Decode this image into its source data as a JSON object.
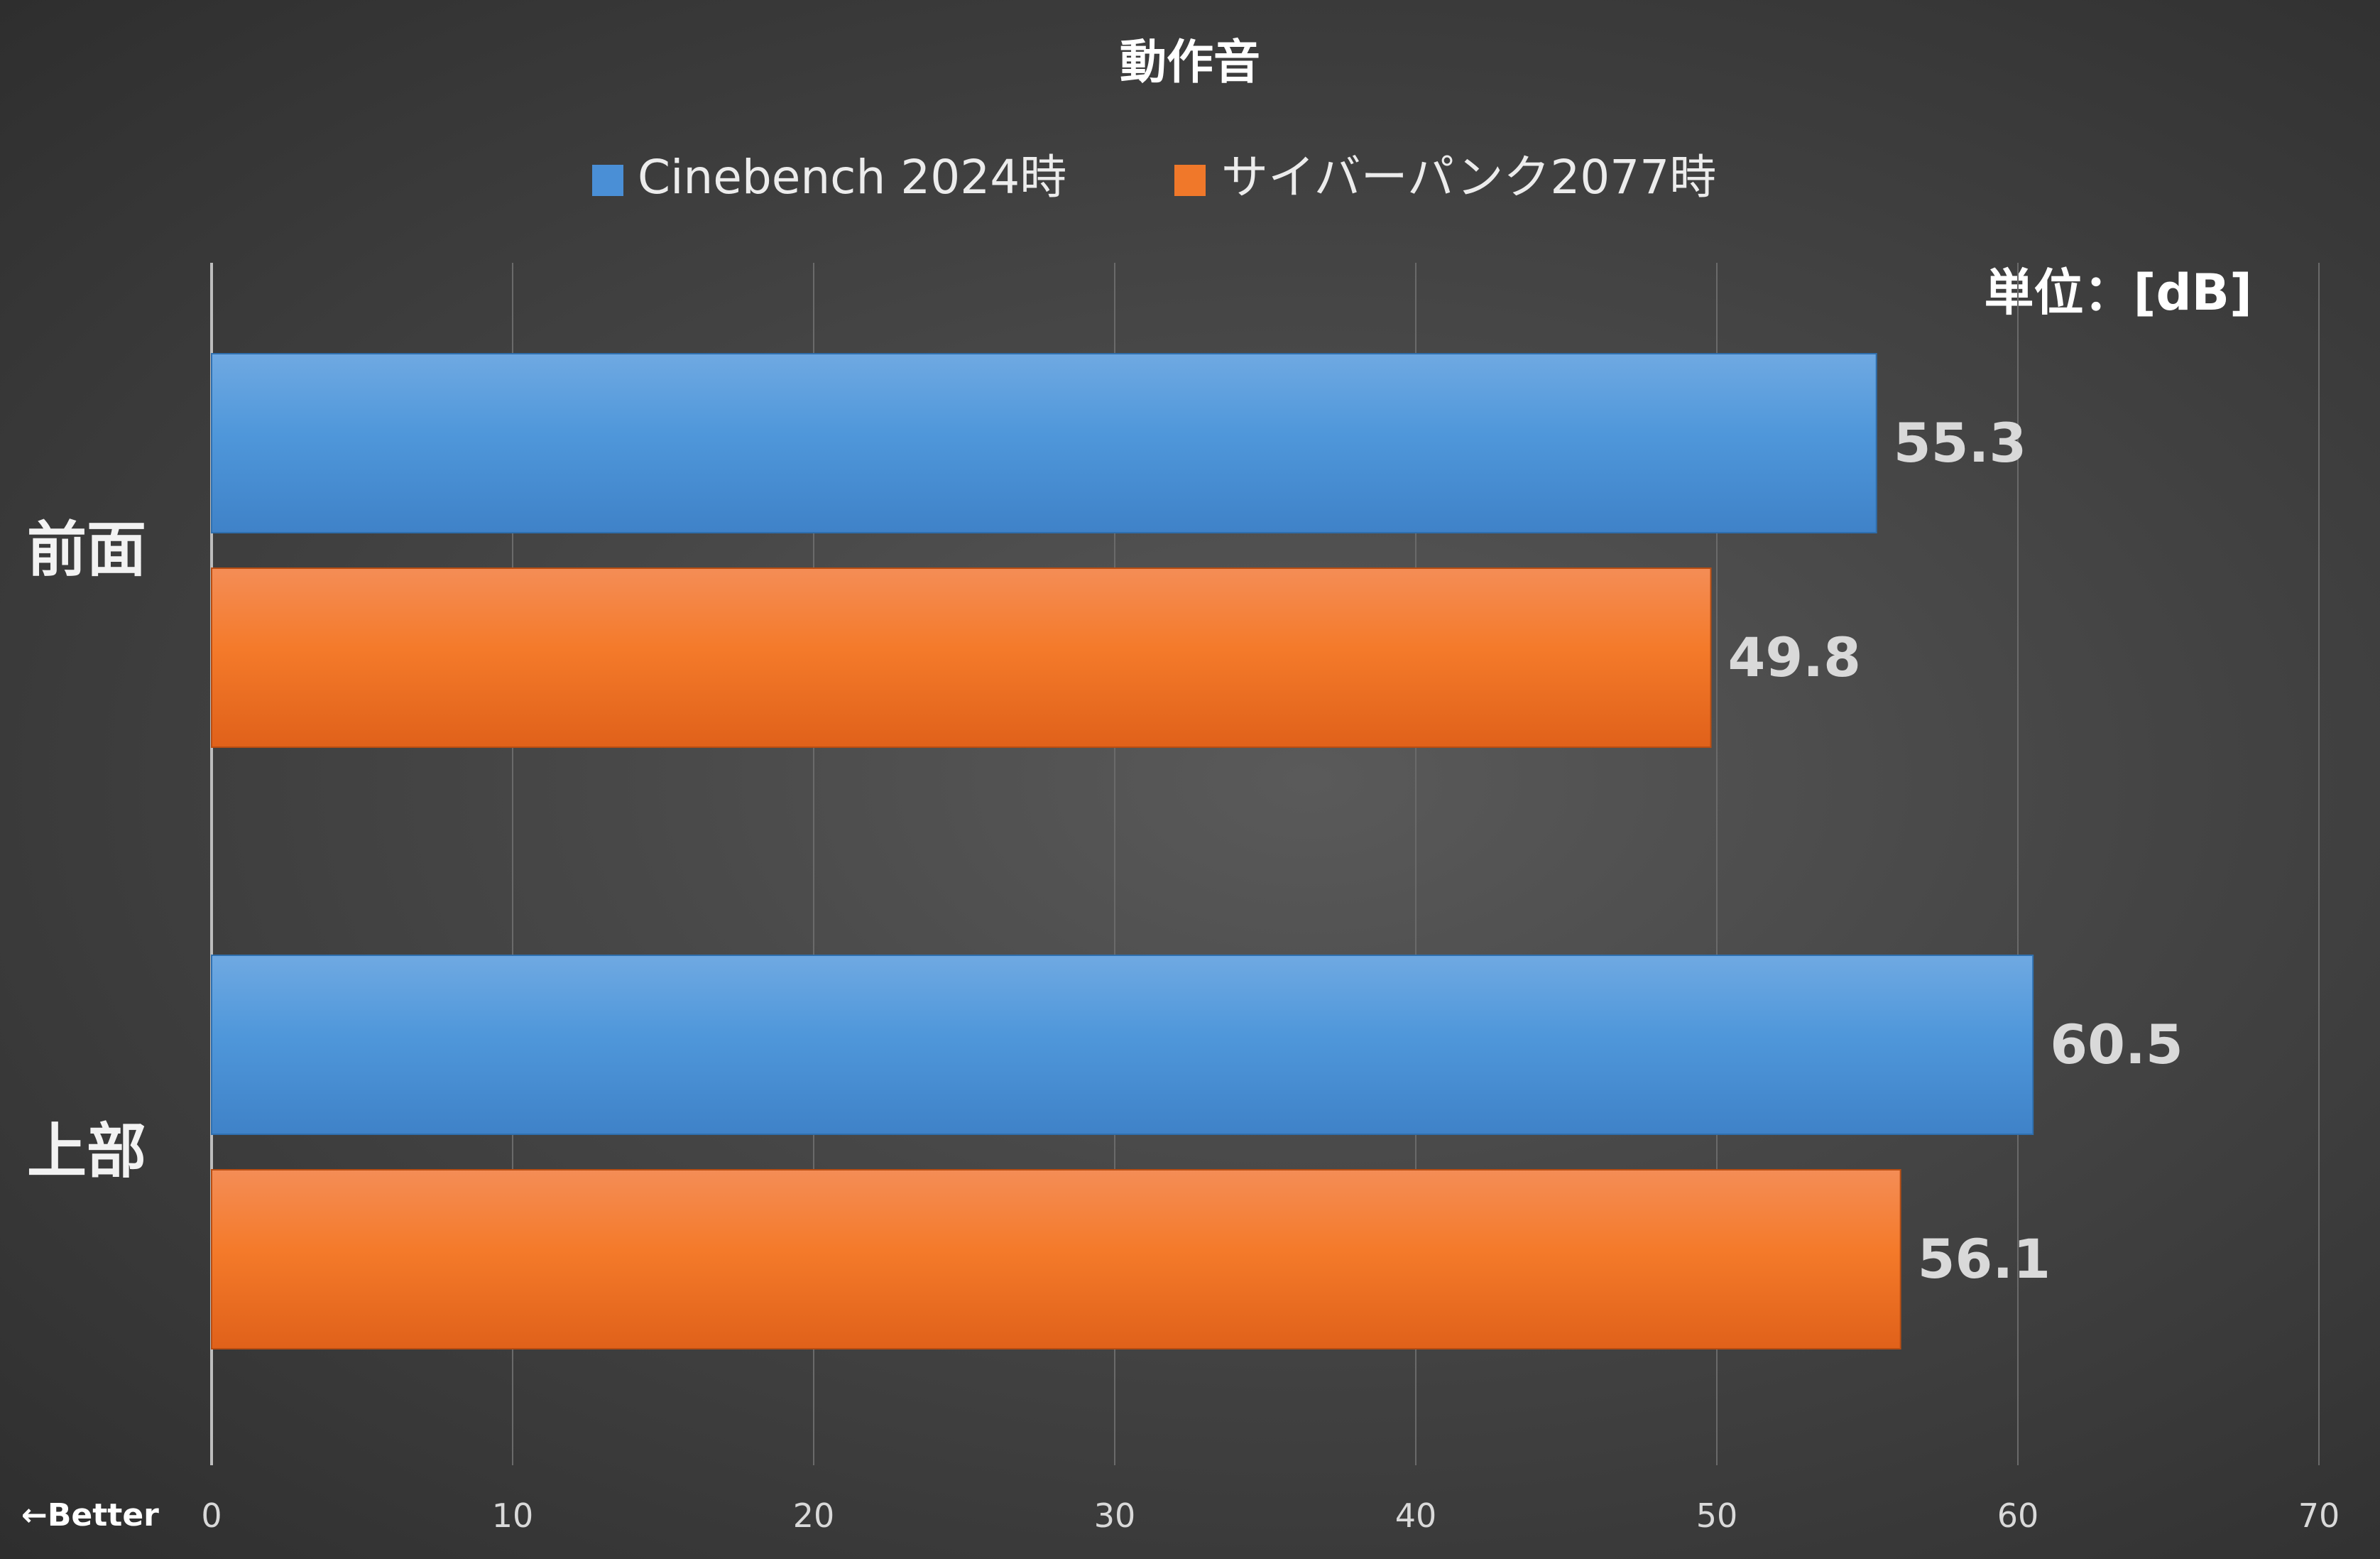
{
  "chart_data": {
    "type": "bar",
    "orientation": "horizontal",
    "title": "動作音",
    "unit_label": "単位：[dB]",
    "better_label": "←Better",
    "categories": [
      "前面",
      "上部"
    ],
    "series": [
      {
        "name": "Cinebench 2024時",
        "color": "#4a8fd6",
        "values": [
          55.3,
          60.5
        ]
      },
      {
        "name": "サイバーパンク2077時",
        "color": "#f0782a",
        "values": [
          49.8,
          56.1
        ]
      }
    ],
    "value_labels": [
      [
        "55.3",
        "60.5"
      ],
      [
        "49.8",
        "56.1"
      ]
    ],
    "xlim": [
      0,
      70
    ],
    "xticks": [
      0,
      10,
      20,
      30,
      40,
      50,
      60,
      70
    ],
    "grid": true,
    "legend_position": "top-center"
  }
}
